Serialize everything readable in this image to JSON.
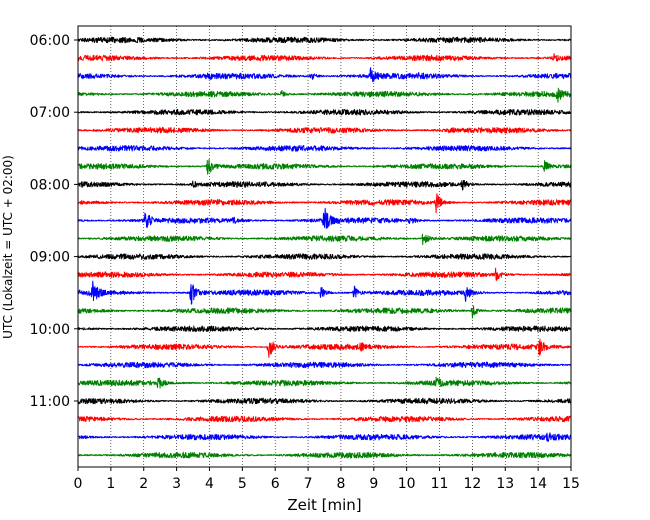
{
  "chart_data": {
    "type": "line",
    "title": "",
    "xlabel": "Zeit  [min]",
    "ylabel": "UTC (Lokalzeit = UTC + 02:00)",
    "xlim": [
      0,
      15
    ],
    "x_ticks": [
      "0",
      "1",
      "2",
      "3",
      "4",
      "5",
      "6",
      "7",
      "8",
      "9",
      "10",
      "11",
      "12",
      "13",
      "14",
      "15"
    ],
    "y_ticks": [
      "06:00",
      "07:00",
      "08:00",
      "09:00",
      "10:00",
      "11:00"
    ],
    "grid": "vertical dotted",
    "trace_interval_minutes": 15,
    "color_cycle": [
      "#000000",
      "#ff0000",
      "#0000ff",
      "#008000"
    ],
    "series": [
      {
        "start": "06:00",
        "color": "#000000",
        "events": []
      },
      {
        "start": "06:15",
        "color": "#ff0000",
        "events": [
          {
            "t": 14.45,
            "amp": 0.45
          }
        ]
      },
      {
        "start": "06:30",
        "color": "#0000ff",
        "events": [
          {
            "t": 3.9,
            "amp": 0.35
          },
          {
            "t": 7.1,
            "amp": 0.45
          },
          {
            "t": 8.9,
            "amp": 0.8
          },
          {
            "t": 10.4,
            "amp": 0.3
          }
        ]
      },
      {
        "start": "06:45",
        "color": "#008000",
        "events": [
          {
            "t": 6.2,
            "amp": 0.4
          },
          {
            "t": 14.6,
            "amp": 0.6
          }
        ]
      },
      {
        "start": "07:00",
        "color": "#000000",
        "events": []
      },
      {
        "start": "07:15",
        "color": "#ff0000",
        "events": [
          {
            "t": 11.3,
            "amp": 0.25
          }
        ]
      },
      {
        "start": "07:30",
        "color": "#0000ff",
        "events": []
      },
      {
        "start": "07:45",
        "color": "#008000",
        "events": [
          {
            "t": 3.95,
            "amp": 0.9
          },
          {
            "t": 14.2,
            "amp": 0.6
          }
        ]
      },
      {
        "start": "08:00",
        "color": "#000000",
        "events": [
          {
            "t": 3.5,
            "amp": 0.25
          },
          {
            "t": 11.7,
            "amp": 0.5
          }
        ]
      },
      {
        "start": "08:15",
        "color": "#ff0000",
        "events": [
          {
            "t": 10.9,
            "amp": 1.0
          }
        ]
      },
      {
        "start": "08:30",
        "color": "#0000ff",
        "events": [
          {
            "t": 2.05,
            "amp": 1.1
          },
          {
            "t": 4.7,
            "amp": 0.3
          },
          {
            "t": 7.5,
            "amp": 1.4
          },
          {
            "t": 10.1,
            "amp": 0.35
          }
        ]
      },
      {
        "start": "08:45",
        "color": "#008000",
        "events": [
          {
            "t": 10.5,
            "amp": 0.9
          }
        ]
      },
      {
        "start": "09:00",
        "color": "#000000",
        "events": []
      },
      {
        "start": "09:15",
        "color": "#ff0000",
        "events": [
          {
            "t": 12.7,
            "amp": 0.6
          }
        ]
      },
      {
        "start": "09:30",
        "color": "#0000ff",
        "events": [
          {
            "t": 0.45,
            "amp": 1.0
          },
          {
            "t": 3.45,
            "amp": 1.4
          },
          {
            "t": 7.4,
            "amp": 0.6
          },
          {
            "t": 8.4,
            "amp": 0.7
          },
          {
            "t": 11.8,
            "amp": 0.8
          }
        ]
      },
      {
        "start": "09:45",
        "color": "#008000",
        "events": [
          {
            "t": 12.0,
            "amp": 0.7
          }
        ]
      },
      {
        "start": "10:00",
        "color": "#000000",
        "events": []
      },
      {
        "start": "10:15",
        "color": "#ff0000",
        "events": [
          {
            "t": 5.8,
            "amp": 1.3
          },
          {
            "t": 8.6,
            "amp": 0.3
          },
          {
            "t": 14.0,
            "amp": 1.0
          }
        ]
      },
      {
        "start": "10:30",
        "color": "#0000ff",
        "events": []
      },
      {
        "start": "10:45",
        "color": "#008000",
        "events": [
          {
            "t": 2.45,
            "amp": 0.6
          },
          {
            "t": 10.9,
            "amp": 0.45
          }
        ]
      },
      {
        "start": "11:00",
        "color": "#000000",
        "events": []
      },
      {
        "start": "11:15",
        "color": "#ff0000",
        "events": []
      },
      {
        "start": "11:30",
        "color": "#0000ff",
        "events": [
          {
            "t": 14.3,
            "amp": 0.25
          }
        ]
      },
      {
        "start": "11:45",
        "color": "#008000",
        "events": []
      }
    ]
  }
}
